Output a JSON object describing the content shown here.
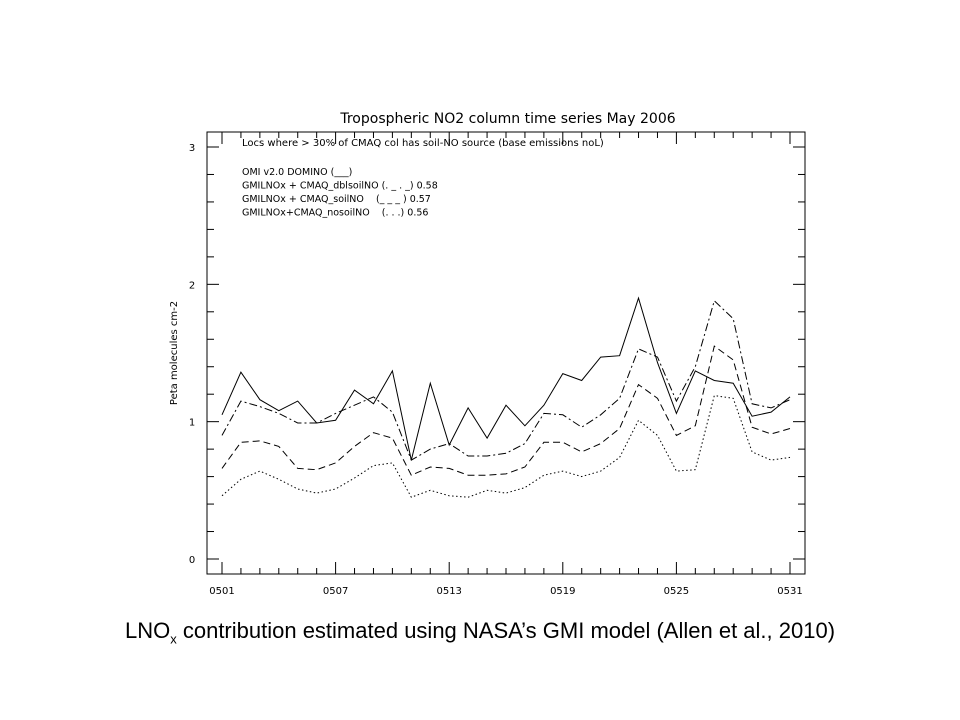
{
  "chart_data": {
    "type": "line",
    "title": "Tropospheric NO2 column time series May 2006",
    "ylabel": "Peta molecules cm-2",
    "xlabel": "",
    "ylim": [
      0,
      3
    ],
    "xlim": [
      1,
      31
    ],
    "yticks": [
      "0",
      "1",
      "2",
      "3"
    ],
    "xticks": [
      {
        "day": 1,
        "label": "0501"
      },
      {
        "day": 7,
        "label": "0507"
      },
      {
        "day": 13,
        "label": "0513"
      },
      {
        "day": 19,
        "label": "0519"
      },
      {
        "day": 25,
        "label": "0525"
      },
      {
        "day": 31,
        "label": "0531"
      }
    ],
    "annotation": "Locs where >  30% of CMAQ col has soil-NO source (base emissions noL)",
    "legend": [
      "OMI v2.0 DOMINO (___)",
      "GMILNOx + CMAQ_dblsoilNO (. _ . _) 0.58",
      "GMILNOx + CMAQ_soilNO    (_ _ _ ) 0.57",
      "GMILNOx+CMAQ_nosoilNO    (. . .) 0.56"
    ],
    "legend_position": "top-left",
    "x": [
      1,
      2,
      3,
      4,
      5,
      6,
      7,
      8,
      9,
      10,
      11,
      12,
      13,
      14,
      15,
      16,
      17,
      18,
      19,
      20,
      21,
      22,
      23,
      24,
      25,
      26,
      27,
      28,
      29,
      30,
      31
    ],
    "series": [
      {
        "style": "solid",
        "values": [
          1.05,
          1.36,
          1.16,
          1.08,
          1.15,
          0.99,
          1.01,
          1.23,
          1.13,
          1.37,
          0.72,
          1.28,
          0.83,
          1.1,
          0.88,
          1.12,
          0.97,
          1.12,
          1.35,
          1.3,
          1.47,
          1.48,
          1.9,
          1.43,
          1.06,
          1.37,
          1.3,
          1.28,
          1.04,
          1.07,
          1.18
        ]
      },
      {
        "style": "dashdot",
        "values": [
          0.9,
          1.15,
          1.11,
          1.06,
          0.99,
          0.99,
          1.06,
          1.12,
          1.18,
          1.07,
          0.72,
          0.8,
          0.84,
          0.75,
          0.75,
          0.77,
          0.84,
          1.06,
          1.05,
          0.96,
          1.05,
          1.17,
          1.53,
          1.47,
          1.15,
          1.4,
          1.88,
          1.75,
          1.13,
          1.1,
          1.16
        ]
      },
      {
        "style": "dashed",
        "values": [
          0.66,
          0.85,
          0.86,
          0.82,
          0.66,
          0.65,
          0.7,
          0.82,
          0.92,
          0.88,
          0.61,
          0.67,
          0.66,
          0.61,
          0.61,
          0.62,
          0.67,
          0.85,
          0.85,
          0.78,
          0.84,
          0.95,
          1.27,
          1.17,
          0.9,
          0.97,
          1.55,
          1.45,
          0.96,
          0.91,
          0.95
        ]
      },
      {
        "style": "dotted",
        "values": [
          0.46,
          0.58,
          0.64,
          0.58,
          0.51,
          0.48,
          0.51,
          0.59,
          0.68,
          0.7,
          0.45,
          0.5,
          0.46,
          0.45,
          0.5,
          0.48,
          0.52,
          0.61,
          0.64,
          0.6,
          0.64,
          0.74,
          1.01,
          0.9,
          0.64,
          0.65,
          1.19,
          1.17,
          0.78,
          0.72,
          0.74
        ]
      }
    ]
  },
  "caption": {
    "prefix": "LNO",
    "subscript": "x",
    "text": " contribution estimated using NASA’s GMI model (Allen et al., 2010)"
  }
}
